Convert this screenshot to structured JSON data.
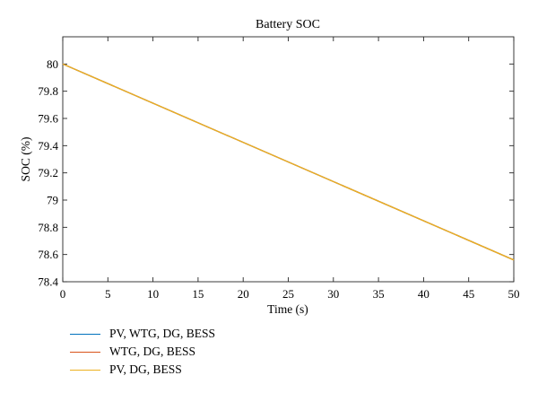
{
  "chart_data": {
    "type": "line",
    "title": "Battery SOC",
    "xlabel": "Time (s)",
    "ylabel": "SOC (%)",
    "xlim": [
      0,
      50
    ],
    "ylim": [
      78.4,
      80.2
    ],
    "xticks": [
      "0",
      "5",
      "10",
      "15",
      "20",
      "25",
      "30",
      "35",
      "40",
      "45",
      "50"
    ],
    "yticks": [
      "78.4",
      "78.6",
      "78.8",
      "79",
      "79.2",
      "79.4",
      "79.6",
      "79.8",
      "80"
    ],
    "grid": false,
    "legend_position": "bottom-left",
    "series": [
      {
        "name": "PV, WTG, DG, BESS",
        "color": "#0072BD",
        "x": [
          0,
          50
        ],
        "y": [
          80.0,
          78.56
        ]
      },
      {
        "name": "WTG, DG, BESS",
        "color": "#D95319",
        "x": [
          0,
          50
        ],
        "y": [
          80.0,
          78.56
        ]
      },
      {
        "name": "PV, DG, BESS",
        "color": "#EDB120",
        "x": [
          0,
          50
        ],
        "y": [
          80.0,
          78.56
        ]
      }
    ]
  }
}
